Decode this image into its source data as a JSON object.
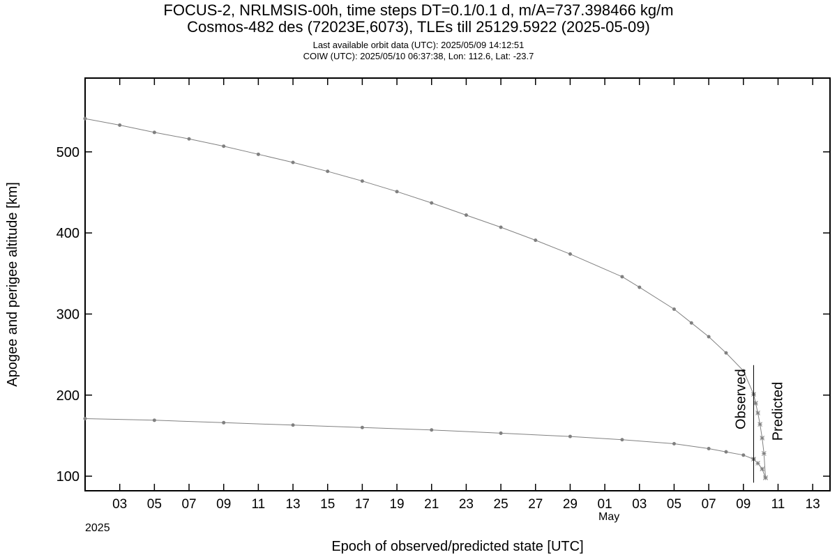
{
  "titles": {
    "line1": "FOCUS-2, NRLMSIS-00h, time steps DT=0.1/0.1 d, m/A=737.398466 kg/m",
    "line2": "Cosmos-482 des (72023E,6073), TLEs till 25129.5922 (2025-05-09)",
    "line3": "Last available orbit data (UTC): 2025/05/09 14:12:51",
    "line4": "COIW (UTC): 2025/05/10 06:37:38, Lon: 112.6, Lat: -23.7"
  },
  "chart_data": {
    "type": "line",
    "title": "",
    "xlabel": "Epoch of observed/predicted state [UTC]",
    "ylabel": "Apogee and perigee altitude [km]",
    "x_range": [
      "2025-04-01",
      "2025-05-14"
    ],
    "ylim": [
      82,
      591
    ],
    "y_ticks": [
      100,
      200,
      300,
      400,
      500
    ],
    "x_tick_dates": [
      "2025-04-03",
      "2025-04-05",
      "2025-04-07",
      "2025-04-09",
      "2025-04-11",
      "2025-04-13",
      "2025-04-15",
      "2025-04-17",
      "2025-04-19",
      "2025-04-21",
      "2025-04-23",
      "2025-04-25",
      "2025-04-27",
      "2025-04-29",
      "2025-05-01",
      "2025-05-03",
      "2025-05-05",
      "2025-05-07",
      "2025-05-09",
      "2025-05-11",
      "2025-05-13"
    ],
    "x_tick_labels": [
      "03",
      "05",
      "07",
      "09",
      "11",
      "13",
      "15",
      "17",
      "19",
      "21",
      "23",
      "25",
      "27",
      "29",
      "01",
      "03",
      "05",
      "07",
      "09",
      "11",
      "13"
    ],
    "month_label": "May",
    "month_label_date": "2025-05-01",
    "year_label": "2025",
    "grid": false,
    "legend": "none",
    "series_color": "#808080",
    "series": [
      {
        "role": "apogee-observed",
        "x": [
          "2025-04-01",
          "2025-04-03",
          "2025-04-05",
          "2025-04-07",
          "2025-04-09",
          "2025-04-11",
          "2025-04-13",
          "2025-04-15",
          "2025-04-17",
          "2025-04-19",
          "2025-04-21",
          "2025-04-23",
          "2025-04-25",
          "2025-04-27",
          "2025-04-29",
          "2025-05-02",
          "2025-05-03",
          "2025-05-05",
          "2025-05-06",
          "2025-05-07",
          "2025-05-08",
          "2025-05-09",
          "2025-05-09 14:12"
        ],
        "values": [
          541,
          533,
          524,
          516,
          507,
          497,
          487,
          476,
          464,
          451,
          437,
          422,
          407,
          391,
          374,
          346,
          333,
          306,
          289,
          272,
          252,
          230,
          201
        ]
      },
      {
        "role": "apogee-predicted",
        "x": [
          "2025-05-09 14:12",
          "2025-05-09 17:00",
          "2025-05-09 20:00",
          "2025-05-09 23:00",
          "2025-05-10 02:00",
          "2025-05-10 04:30",
          "2025-05-10 06:37"
        ],
        "values": [
          201,
          190,
          178,
          164,
          147,
          128,
          98
        ]
      },
      {
        "role": "perigee-observed",
        "x": [
          "2025-04-01",
          "2025-04-05",
          "2025-04-09",
          "2025-04-13",
          "2025-04-17",
          "2025-04-21",
          "2025-04-25",
          "2025-04-29",
          "2025-05-02",
          "2025-05-05",
          "2025-05-07",
          "2025-05-08",
          "2025-05-09",
          "2025-05-09 14:12"
        ],
        "values": [
          171,
          169,
          166,
          163,
          160,
          157,
          153,
          149,
          145,
          140,
          134,
          130,
          126,
          121
        ]
      },
      {
        "role": "perigee-predicted",
        "x": [
          "2025-05-09 14:12",
          "2025-05-09 20:00",
          "2025-05-10 02:00",
          "2025-05-10 06:37"
        ],
        "values": [
          121,
          116,
          109,
          98
        ]
      }
    ],
    "divider_date": "2025-05-09 14:12",
    "annotations": {
      "observed": "Observed",
      "predicted": "Predicted"
    }
  }
}
